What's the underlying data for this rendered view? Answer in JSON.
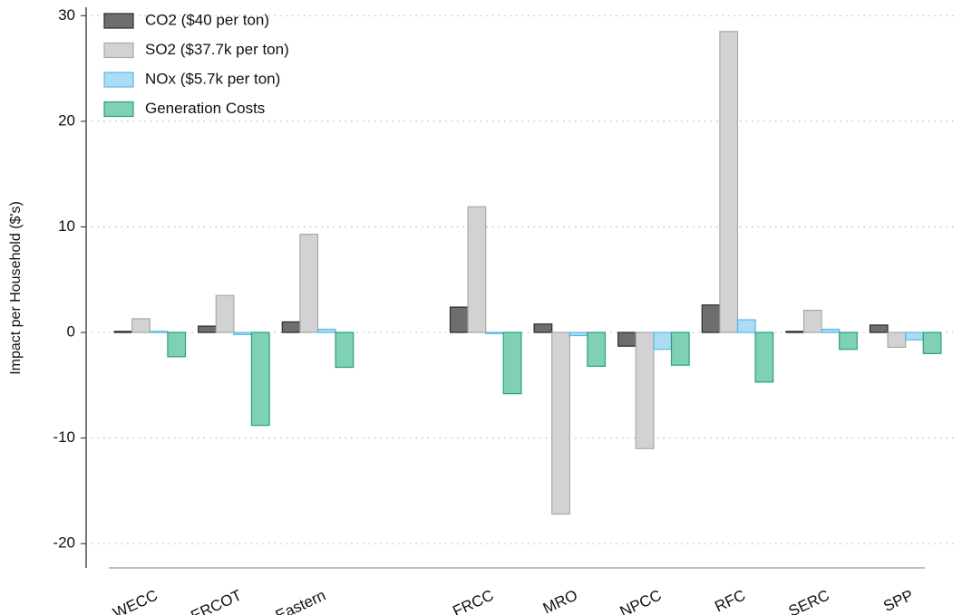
{
  "chart_data": {
    "type": "bar",
    "y_label": "Impact per Household ($'s)",
    "categories": [
      "WECC",
      "ERCOT",
      "Eastern",
      null,
      "FRCC",
      "MRO",
      "NPCC",
      "RFC",
      "SERC",
      "SPP"
    ],
    "series": [
      {
        "name": "CO2 ($40 per ton)",
        "color": "#6e6e6e",
        "edgecolor": "#2b2b2b",
        "values": [
          0.1,
          0.6,
          1.0,
          null,
          2.4,
          0.8,
          -1.3,
          2.6,
          0.1,
          0.7
        ]
      },
      {
        "name": "SO2 ($37.7k per ton)",
        "color": "#d2d2d2",
        "edgecolor": "#a8a8a8",
        "values": [
          1.3,
          3.5,
          9.3,
          null,
          11.9,
          -17.2,
          -11.0,
          28.5,
          2.1,
          -1.4
        ]
      },
      {
        "name": "NOx ($5.7k per ton)",
        "color": "#abdcf4",
        "edgecolor": "#5ab6e6",
        "values": [
          0.1,
          -0.2,
          0.3,
          null,
          -0.1,
          -0.3,
          -1.6,
          1.2,
          0.3,
          -0.7
        ]
      },
      {
        "name": "Generation Costs",
        "color": "#80d0b8",
        "edgecolor": "#23a27b",
        "values": [
          -2.3,
          -8.8,
          -3.3,
          null,
          -5.8,
          -3.2,
          -3.1,
          -4.7,
          -1.6,
          -2.0
        ]
      }
    ],
    "ylim": [
      -22.3,
      30.8
    ],
    "yticks": [
      -20,
      -10,
      0,
      10,
      20,
      30
    ],
    "grid": true,
    "legend": "upper left"
  }
}
